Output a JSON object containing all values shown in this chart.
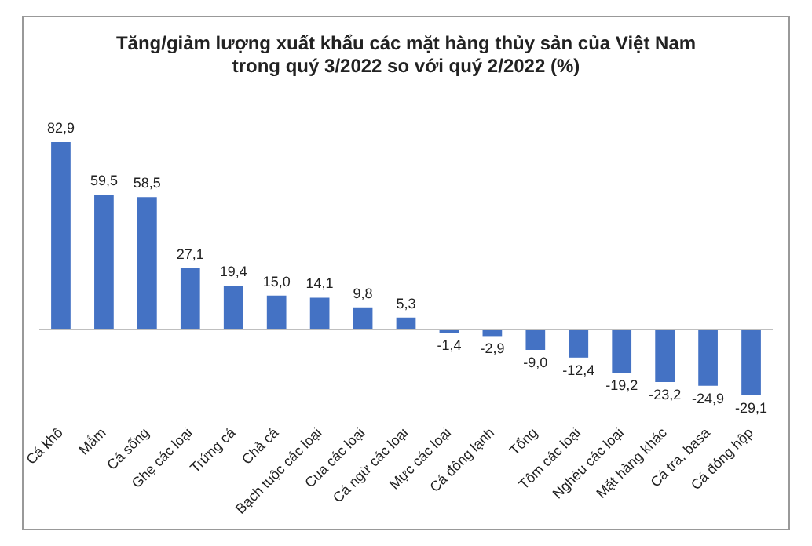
{
  "chart_data": {
    "type": "bar",
    "title": "Tăng/giảm lượng xuất khẩu các mặt hàng thủy sản của Việt Nam\ntrong quý 3/2022 so với quý 2/2022 (%)",
    "categories": [
      "Cá khô",
      "Mắm",
      "Cá sống",
      "Ghẹ các loại",
      "Trứng cá",
      "Chả cá",
      "Bạch tuộc các loại",
      "Cua các loại",
      "Cá ngừ các loại",
      "Mực các loại",
      "Cá đông lạnh",
      "Tổng",
      "Tôm các loại",
      "Nghêu các loại",
      "Mặt hàng khác",
      "Cá tra, basa",
      "Cá đóng hộp"
    ],
    "values": [
      82.9,
      59.5,
      58.5,
      27.1,
      19.4,
      15.0,
      14.1,
      9.8,
      5.3,
      -1.4,
      -2.9,
      -9.0,
      -12.4,
      -19.2,
      -23.2,
      -24.9,
      -29.1
    ],
    "value_labels": [
      "82,9",
      "59,5",
      "58,5",
      "27,1",
      "19,4",
      "15,0",
      "14,1",
      "9,8",
      "5,3",
      "-1,4",
      "-2,9",
      "-9,0",
      "-12,4",
      "-19,2",
      "-23,2",
      "-24,9",
      "-29,1"
    ],
    "color": "#4472c4",
    "grid": false,
    "legend": false
  }
}
